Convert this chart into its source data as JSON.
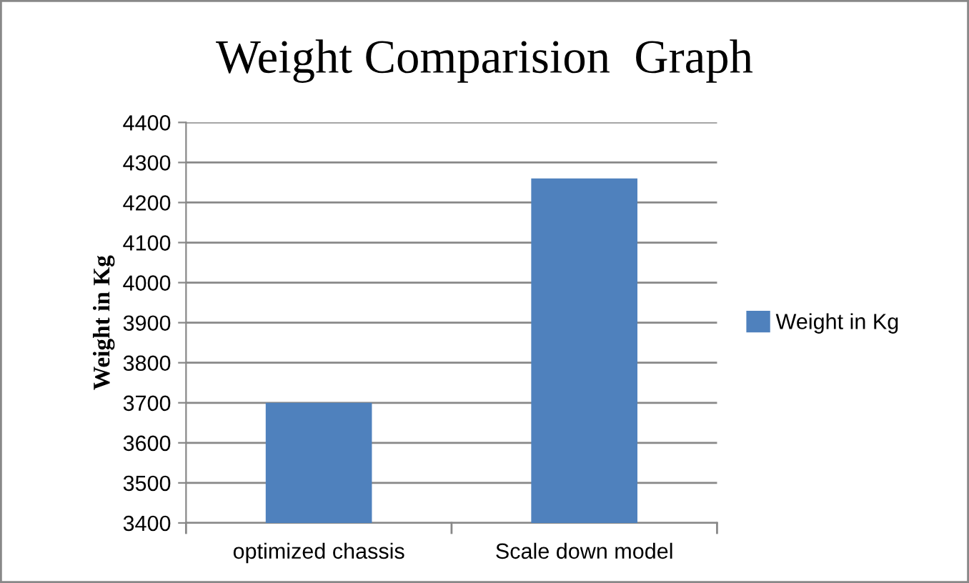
{
  "chart_data": {
    "type": "bar",
    "title": "Weight Comparision  Graph",
    "ylabel": "Weight in Kg",
    "categories": [
      "optimized chassis",
      "Scale down model"
    ],
    "series": [
      {
        "name": "Weight in Kg",
        "color": "#4f81bd",
        "values": [
          3700,
          4260
        ]
      }
    ],
    "ylim": [
      3400,
      4400
    ],
    "yticks": [
      3400,
      3500,
      3600,
      3700,
      3800,
      3900,
      4000,
      4100,
      4200,
      4300,
      4400
    ],
    "grid": "y",
    "legend": "right"
  }
}
